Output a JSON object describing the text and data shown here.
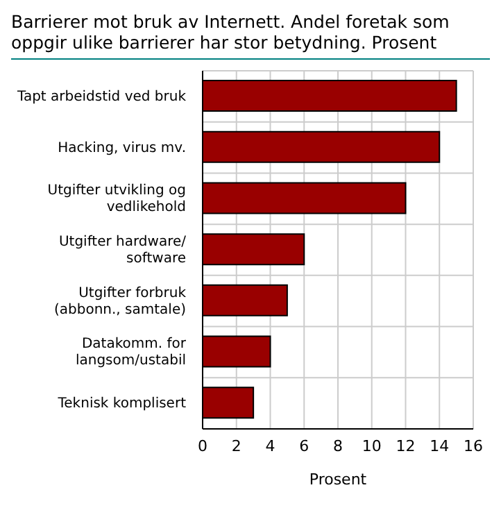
{
  "chart_data": {
    "type": "bar",
    "orientation": "horizontal",
    "title": "Barrierer mot bruk av Internett. Andel foretak som oppgir ulike barrierer har stor betydning. Prosent",
    "xlabel": "Prosent",
    "categories": [
      "Tapt arbeidstid ved bruk",
      "Hacking, virus mv.",
      "Utgifter utvikling og\nvedlikehold",
      "Utgifter hardware/\nsoftware",
      "Utgifter forbruk\n(abbonn., samtale)",
      "Datakomm. for\nlangsom/ustabil",
      "Teknisk komplisert"
    ],
    "values": [
      15,
      14,
      12,
      6,
      5,
      4,
      3
    ],
    "color": "#990000",
    "xlim": [
      0,
      16
    ],
    "xticks": [
      0,
      2,
      4,
      6,
      8,
      10,
      12,
      14,
      16
    ],
    "grid": true
  }
}
